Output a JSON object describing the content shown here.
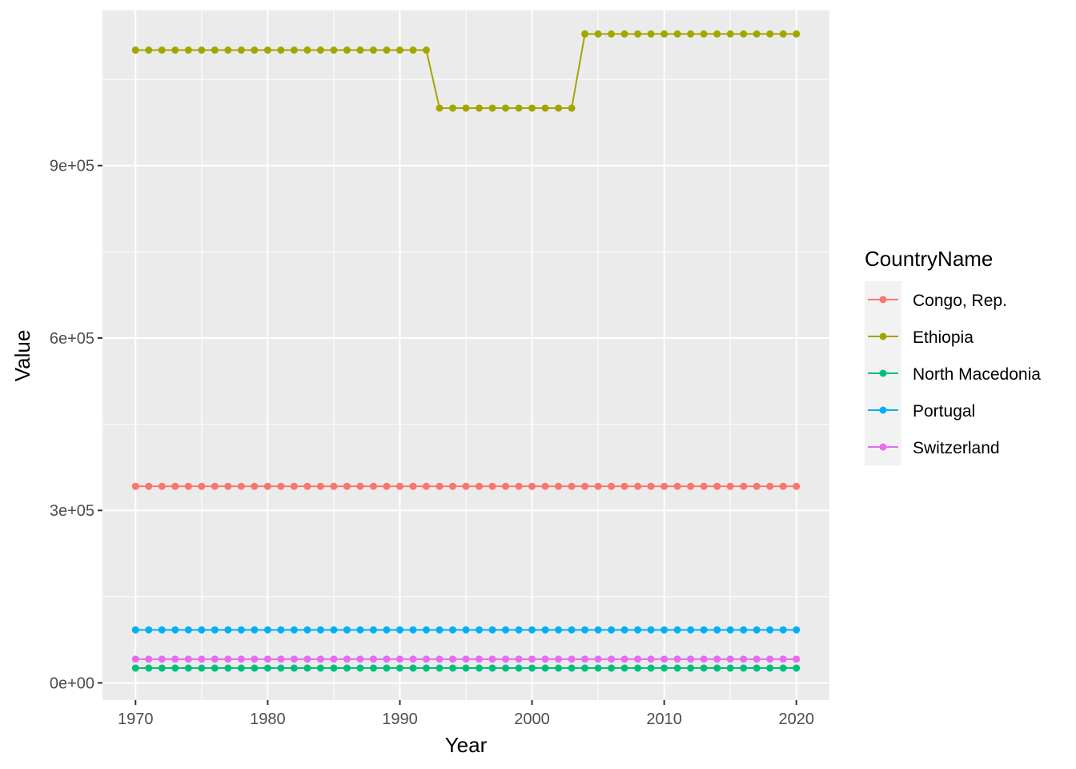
{
  "chart_data": {
    "type": "line",
    "xlabel": "Year",
    "ylabel": "Value",
    "xlim": [
      1967.5,
      2022.5
    ],
    "ylim": [
      -30000,
      1170000
    ],
    "x_ticks": [
      1970,
      1980,
      1990,
      2000,
      2010,
      2020
    ],
    "x_tick_labels": [
      "1970",
      "1980",
      "1990",
      "2000",
      "2010",
      "2020"
    ],
    "y_ticks": [
      0,
      300000,
      600000,
      900000
    ],
    "y_tick_labels": [
      "0e+00",
      "3e+05",
      "6e+05",
      "9e+05"
    ],
    "grid": true,
    "legend_title": "CountryName",
    "legend_position": "right",
    "series": [
      {
        "name": "Congo, Rep.",
        "color": "#F8766D",
        "segments": [
          {
            "x_start": 1970,
            "x_end": 2020,
            "value": 342000
          }
        ]
      },
      {
        "name": "Ethiopia",
        "color": "#A3A500",
        "segments": [
          {
            "x_start": 1970,
            "x_end": 1992,
            "value": 1101000
          },
          {
            "x_start": 1993,
            "x_end": 2003,
            "value": 1000000
          },
          {
            "x_start": 2004,
            "x_end": 2020,
            "value": 1129000
          }
        ]
      },
      {
        "name": "North Macedonia",
        "color": "#00BF7D",
        "segments": [
          {
            "x_start": 1970,
            "x_end": 2020,
            "value": 25700
          }
        ]
      },
      {
        "name": "Portugal",
        "color": "#00B0F6",
        "segments": [
          {
            "x_start": 1970,
            "x_end": 2020,
            "value": 92200
          }
        ]
      },
      {
        "name": "Switzerland",
        "color": "#E76BF3",
        "segments": [
          {
            "x_start": 1970,
            "x_end": 2020,
            "value": 41300
          }
        ]
      }
    ]
  }
}
